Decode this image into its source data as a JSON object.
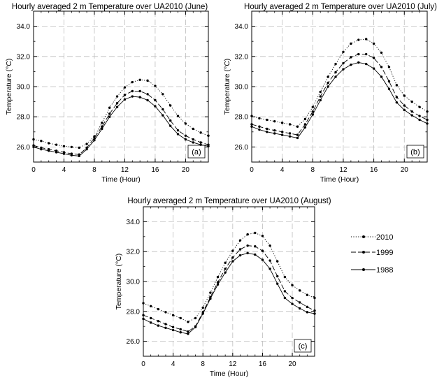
{
  "figure": {
    "legend": [
      {
        "label": "2010",
        "style": "dotted"
      },
      {
        "label": "1999",
        "style": "dashed"
      },
      {
        "label": "1988",
        "style": "solid"
      }
    ]
  },
  "chart_data": [
    {
      "type": "line",
      "panel_label": "(a)",
      "title": "Hourly averaged 2 m Temperature over UA2010 (June)",
      "xlabel": "Time (Hour)",
      "ylabel": "Temperature (°C)",
      "xlim": [
        0,
        23
      ],
      "ylim": [
        25.0,
        35.0
      ],
      "xticks": [
        0,
        4,
        8,
        12,
        16,
        20
      ],
      "yticks": [
        26.0,
        28.0,
        30.0,
        32.0,
        34.0
      ],
      "grid": true,
      "x": [
        0,
        1,
        2,
        3,
        4,
        5,
        6,
        7,
        8,
        9,
        10,
        11,
        12,
        13,
        14,
        15,
        16,
        17,
        18,
        19,
        20,
        21,
        22,
        23
      ],
      "series": [
        {
          "name": "2010",
          "style": "dotted",
          "values": [
            26.5,
            26.4,
            26.25,
            26.15,
            26.05,
            26.0,
            25.95,
            26.2,
            26.7,
            27.6,
            28.6,
            29.35,
            29.95,
            30.3,
            30.45,
            30.4,
            30.05,
            29.5,
            28.75,
            28.05,
            27.55,
            27.2,
            26.95,
            26.75
          ]
        },
        {
          "name": "1999",
          "style": "dashed",
          "values": [
            26.1,
            25.95,
            25.85,
            25.75,
            25.65,
            25.55,
            25.5,
            25.95,
            26.6,
            27.35,
            28.2,
            28.9,
            29.45,
            29.7,
            29.7,
            29.5,
            29.1,
            28.5,
            27.75,
            27.1,
            26.75,
            26.5,
            26.3,
            26.15
          ]
        },
        {
          "name": "1988",
          "style": "solid",
          "values": [
            26.0,
            25.85,
            25.75,
            25.65,
            25.55,
            25.45,
            25.4,
            25.85,
            26.45,
            27.2,
            28.0,
            28.65,
            29.15,
            29.35,
            29.3,
            29.1,
            28.7,
            28.1,
            27.4,
            26.85,
            26.5,
            26.3,
            26.15,
            26.05
          ]
        }
      ]
    },
    {
      "type": "line",
      "panel_label": "(b)",
      "title": "Hourly averaged 2 m Temperature over UA2010 (July)",
      "xlabel": "Time (Hour)",
      "ylabel": "Temperature (°C)",
      "xlim": [
        0,
        23
      ],
      "ylim": [
        25.0,
        35.0
      ],
      "xticks": [
        0,
        4,
        8,
        12,
        16,
        20
      ],
      "yticks": [
        26.0,
        28.0,
        30.0,
        32.0,
        34.0
      ],
      "grid": true,
      "x": [
        0,
        1,
        2,
        3,
        4,
        5,
        6,
        7,
        8,
        9,
        10,
        11,
        12,
        13,
        14,
        15,
        16,
        17,
        18,
        19,
        20,
        21,
        22,
        23
      ],
      "series": [
        {
          "name": "2010",
          "style": "dotted",
          "values": [
            28.05,
            27.9,
            27.8,
            27.7,
            27.6,
            27.5,
            27.35,
            27.85,
            28.65,
            29.65,
            30.65,
            31.5,
            32.3,
            32.85,
            33.1,
            33.15,
            32.85,
            32.25,
            31.3,
            30.1,
            29.4,
            29.0,
            28.65,
            28.35
          ]
        },
        {
          "name": "1999",
          "style": "dashed",
          "values": [
            27.5,
            27.35,
            27.2,
            27.1,
            27.0,
            26.9,
            26.8,
            27.5,
            28.35,
            29.35,
            30.25,
            30.95,
            31.55,
            31.95,
            32.15,
            32.15,
            31.9,
            31.3,
            30.35,
            29.3,
            28.75,
            28.35,
            28.05,
            27.8
          ]
        },
        {
          "name": "1988",
          "style": "solid",
          "values": [
            27.35,
            27.15,
            27.0,
            26.9,
            26.8,
            26.7,
            26.6,
            27.3,
            28.15,
            29.1,
            30.0,
            30.65,
            31.15,
            31.45,
            31.6,
            31.5,
            31.2,
            30.65,
            29.85,
            28.95,
            28.45,
            28.1,
            27.8,
            27.55
          ]
        }
      ]
    },
    {
      "type": "line",
      "panel_label": "(c)",
      "title": "Hourly averaged 2 m Temperature over UA2010 (August)",
      "xlabel": "Time (Hour)",
      "ylabel": "Temperature (°C)",
      "xlim": [
        0,
        23
      ],
      "ylim": [
        25.0,
        35.0
      ],
      "xticks": [
        0,
        4,
        8,
        12,
        16,
        20
      ],
      "yticks": [
        26.0,
        28.0,
        30.0,
        32.0,
        34.0
      ],
      "grid": true,
      "x": [
        0,
        1,
        2,
        3,
        4,
        5,
        6,
        7,
        8,
        9,
        10,
        11,
        12,
        13,
        14,
        15,
        16,
        17,
        18,
        19,
        20,
        21,
        22,
        23
      ],
      "series": [
        {
          "name": "2010",
          "style": "dotted",
          "values": [
            28.55,
            28.35,
            28.15,
            27.95,
            27.75,
            27.55,
            27.3,
            27.55,
            28.25,
            29.25,
            30.3,
            31.25,
            32.05,
            32.75,
            33.15,
            33.25,
            33.05,
            32.4,
            31.35,
            30.3,
            29.75,
            29.4,
            29.1,
            28.9
          ]
        },
        {
          "name": "1999",
          "style": "dashed",
          "values": [
            27.75,
            27.55,
            27.35,
            27.15,
            26.95,
            26.8,
            26.65,
            27.0,
            27.95,
            28.95,
            29.95,
            30.85,
            31.6,
            32.15,
            32.4,
            32.35,
            32.05,
            31.4,
            30.35,
            29.35,
            28.9,
            28.6,
            28.3,
            28.05
          ]
        },
        {
          "name": "1988",
          "style": "solid",
          "values": [
            27.5,
            27.25,
            27.05,
            26.9,
            26.75,
            26.6,
            26.5,
            26.95,
            27.85,
            28.85,
            29.8,
            30.6,
            31.35,
            31.75,
            31.9,
            31.8,
            31.45,
            30.85,
            29.85,
            28.9,
            28.5,
            28.2,
            27.95,
            27.85
          ]
        }
      ]
    }
  ]
}
